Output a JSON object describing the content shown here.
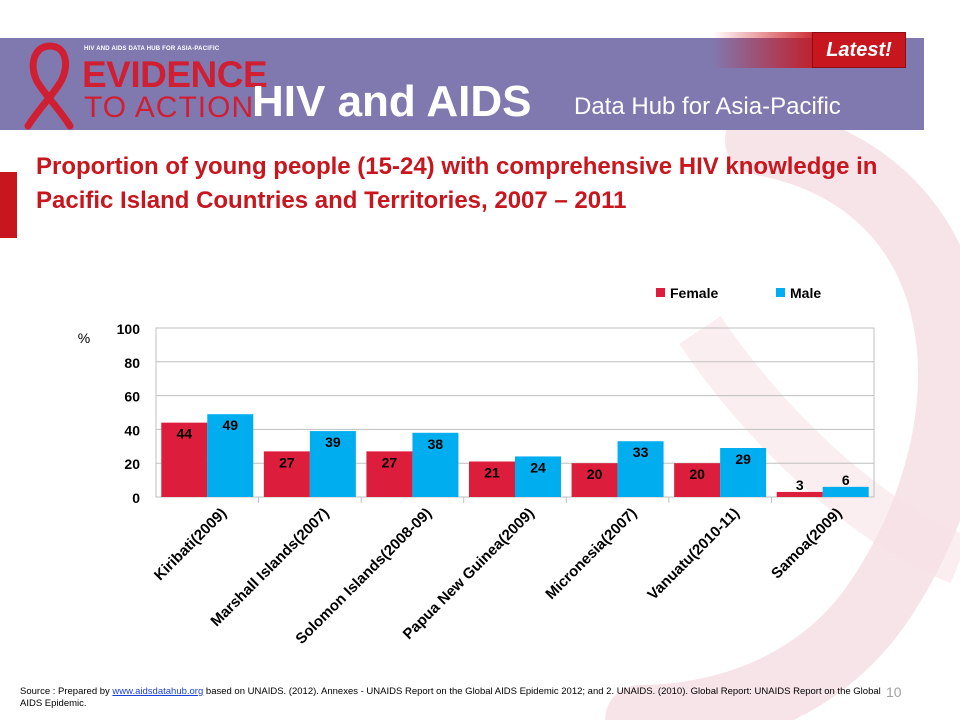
{
  "header": {
    "logo_small_text": "HIV AND AIDS DATA HUB FOR ASIA-PACIFIC",
    "logo_line1": "EVIDENCE",
    "logo_line2": "TO ACTION",
    "brand_main": "HIV and AIDS",
    "brand_sub": "Data Hub for Asia-Pacific",
    "latest_badge": "Latest!"
  },
  "slide_title": "Proportion of young people (15-24) with comprehensive HIV knowledge in Pacific Island Countries and Territories, 2007 – 2011",
  "colors": {
    "female": "#dc1e3c",
    "male": "#00aeef",
    "title": "#c8161e",
    "header_band": "#8079b0"
  },
  "chart_data": {
    "type": "bar",
    "title": "",
    "xlabel": "",
    "ylabel": "%",
    "ylim": [
      0,
      100
    ],
    "yticks": [
      0,
      20,
      40,
      60,
      80,
      100
    ],
    "grid": true,
    "legend_position": "top-right",
    "categories": [
      "Kiribati(2009)",
      "Marshall Islands(2007)",
      "Solomon Islands(2008-09)",
      "Papua New Guinea(2009)",
      "Micronesia(2007)",
      "Vanuatu(2010-11)",
      "Samoa(2009)"
    ],
    "series": [
      {
        "name": "Female",
        "color": "#dc1e3c",
        "values": [
          44,
          27,
          27,
          21,
          20,
          20,
          3
        ]
      },
      {
        "name": "Male",
        "color": "#00aeef",
        "values": [
          49,
          39,
          38,
          24,
          33,
          29,
          6
        ]
      }
    ]
  },
  "footer": {
    "source_prefix": "Source : Prepared by ",
    "source_link": "www.aidsdatahub.org",
    "source_suffix": " based on UNAIDS. (2012). Annexes - UNAIDS Report on the Global AIDS Epidemic 2012; and 2. UNAIDS. (2010). Global Report: UNAIDS Report on the Global AIDS Epidemic.",
    "page_number": "10"
  }
}
